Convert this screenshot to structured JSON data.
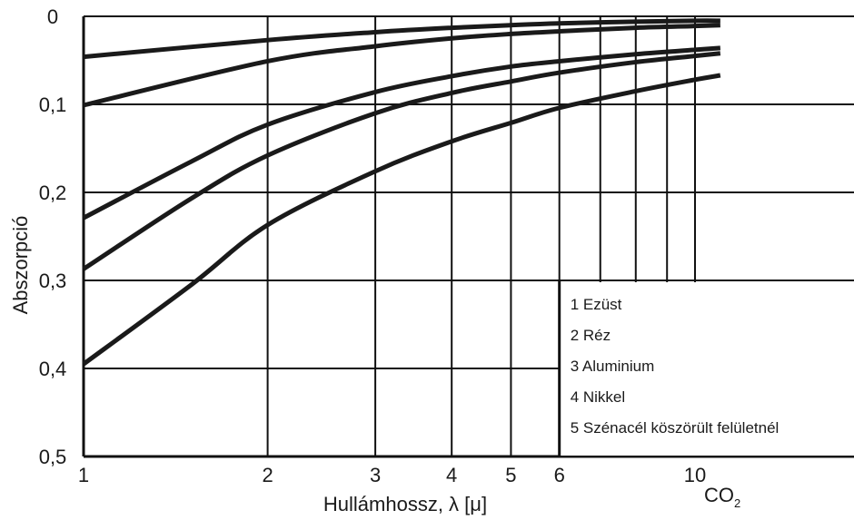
{
  "chart_data": {
    "type": "line",
    "title": "",
    "xlabel": "Hullámhossz, λ [μ]",
    "ylabel": "Abszorpció",
    "x_scale": "log",
    "y_inverted": true,
    "xlim": [
      1,
      11
    ],
    "ylim": [
      0,
      0.5
    ],
    "x_ticks": [
      1,
      2,
      3,
      4,
      5,
      6,
      10
    ],
    "x_tick_labels": [
      "1",
      "2",
      "3",
      "4",
      "5",
      "6",
      "10"
    ],
    "x_extra_gridlines": [
      7,
      8,
      9
    ],
    "y_ticks": [
      0,
      0.1,
      0.2,
      0.3,
      0.4,
      0.5
    ],
    "y_tick_labels": [
      "0",
      "0,1",
      "0,2",
      "0,3",
      "0,4",
      "0,5"
    ],
    "co2_marker": "CO2",
    "grid": true,
    "legend_position": "bottom-right",
    "legend": [
      "1 Ezüst",
      "2 Réz",
      "3 Aluminium",
      "4 Nikkel",
      "5 Szénacél köszörült felületnél"
    ],
    "series": [
      {
        "name": "1 Ezüst",
        "x": [
          1,
          2,
          3,
          4,
          5,
          6,
          8,
          10,
          11
        ],
        "y": [
          0.046,
          0.027,
          0.018,
          0.013,
          0.01,
          0.008,
          0.006,
          0.005,
          0.005
        ]
      },
      {
        "name": "2 Réz",
        "x": [
          1,
          2,
          3,
          4,
          5,
          6,
          8,
          10,
          11
        ],
        "y": [
          0.101,
          0.051,
          0.034,
          0.025,
          0.02,
          0.017,
          0.013,
          0.011,
          0.01
        ]
      },
      {
        "name": "3 Aluminium",
        "x": [
          1,
          1.5,
          2,
          3,
          4,
          5,
          6,
          8,
          10,
          11
        ],
        "y": [
          0.229,
          0.165,
          0.123,
          0.086,
          0.068,
          0.057,
          0.051,
          0.043,
          0.038,
          0.036
        ]
      },
      {
        "name": "4 Nikkel",
        "x": [
          1,
          1.5,
          2,
          3,
          4,
          5,
          6,
          8,
          10,
          11
        ],
        "y": [
          0.287,
          0.207,
          0.158,
          0.11,
          0.087,
          0.074,
          0.064,
          0.052,
          0.045,
          0.042
        ]
      },
      {
        "name": "5 Szénacél köszörült felületnél",
        "x": [
          1,
          1.5,
          2,
          3,
          4,
          5,
          6,
          8,
          10,
          11
        ],
        "y": [
          0.395,
          0.305,
          0.237,
          0.176,
          0.142,
          0.121,
          0.104,
          0.085,
          0.072,
          0.067
        ]
      }
    ]
  }
}
